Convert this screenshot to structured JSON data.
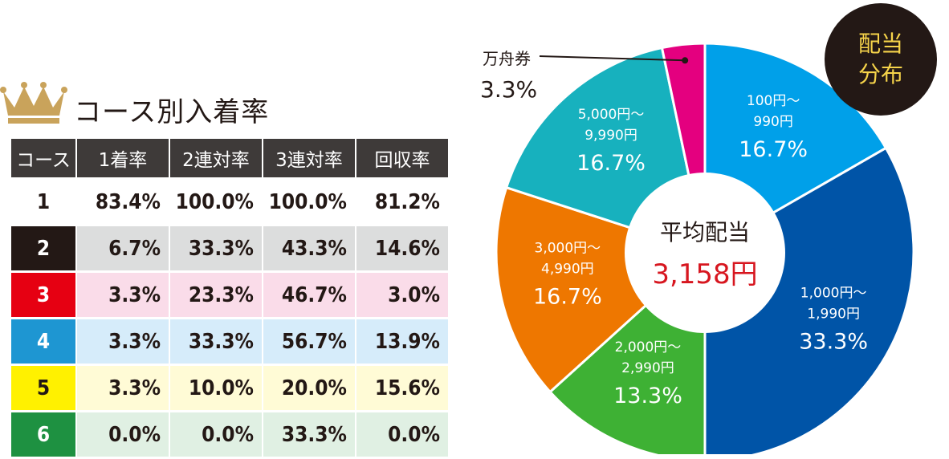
{
  "table": {
    "title": "コース別入着率",
    "headers": [
      "コース",
      "1着率",
      "2連対率",
      "3連対率",
      "回収率"
    ],
    "rows": [
      {
        "course": "1",
        "cells": [
          "83.4%",
          "100.0%",
          "100.0%",
          "81.2%"
        ],
        "course_bg": "#ffffff",
        "course_color": "#231815",
        "row_bg": "#ffffff"
      },
      {
        "course": "2",
        "cells": [
          "6.7%",
          "33.3%",
          "43.3%",
          "14.6%"
        ],
        "course_bg": "#231815",
        "course_color": "#ffffff",
        "row_bg": "#dcdddd"
      },
      {
        "course": "3",
        "cells": [
          "3.3%",
          "23.3%",
          "46.7%",
          "3.0%"
        ],
        "course_bg": "#e60012",
        "course_color": "#ffffff",
        "row_bg": "#fadce9"
      },
      {
        "course": "4",
        "cells": [
          "3.3%",
          "33.3%",
          "56.7%",
          "13.9%"
        ],
        "course_bg": "#1e96d2",
        "course_color": "#ffffff",
        "row_bg": "#d6ecfa"
      },
      {
        "course": "5",
        "cells": [
          "3.3%",
          "10.0%",
          "20.0%",
          "15.6%"
        ],
        "course_bg": "#fff100",
        "course_color": "#231815",
        "row_bg": "#fffbd6"
      },
      {
        "course": "6",
        "cells": [
          "0.0%",
          "0.0%",
          "33.3%",
          "0.0%"
        ],
        "course_bg": "#1e9141",
        "course_color": "#ffffff",
        "row_bg": "#e0f0e3"
      }
    ]
  },
  "badge": {
    "line1": "配当",
    "line2": "分布"
  },
  "center": {
    "title": "平均配当",
    "value": "3,158円"
  },
  "chart_data": {
    "type": "pie",
    "title": "配当分布",
    "slices": [
      {
        "label_line1": "100円〜",
        "label_line2": "990円",
        "pct_label": "16.7%",
        "value": 16.7,
        "color": "#00a0e9"
      },
      {
        "label_line1": "1,000円〜",
        "label_line2": "1,990円",
        "pct_label": "33.3%",
        "value": 33.3,
        "color": "#0054a7"
      },
      {
        "label_line1": "2,000円〜",
        "label_line2": "2,990円",
        "pct_label": "13.3%",
        "value": 13.3,
        "color": "#3eb134"
      },
      {
        "label_line1": "3,000円〜",
        "label_line2": "4,990円",
        "pct_label": "16.7%",
        "value": 16.7,
        "color": "#ee7700"
      },
      {
        "label_line1": "5,000円〜",
        "label_line2": "9,990円",
        "pct_label": "16.7%",
        "value": 16.7,
        "color": "#17b1be"
      },
      {
        "label_line1": "万舟券",
        "label_line2": "",
        "pct_label": "3.3%",
        "value": 3.3,
        "color": "#e4007f"
      }
    ]
  }
}
